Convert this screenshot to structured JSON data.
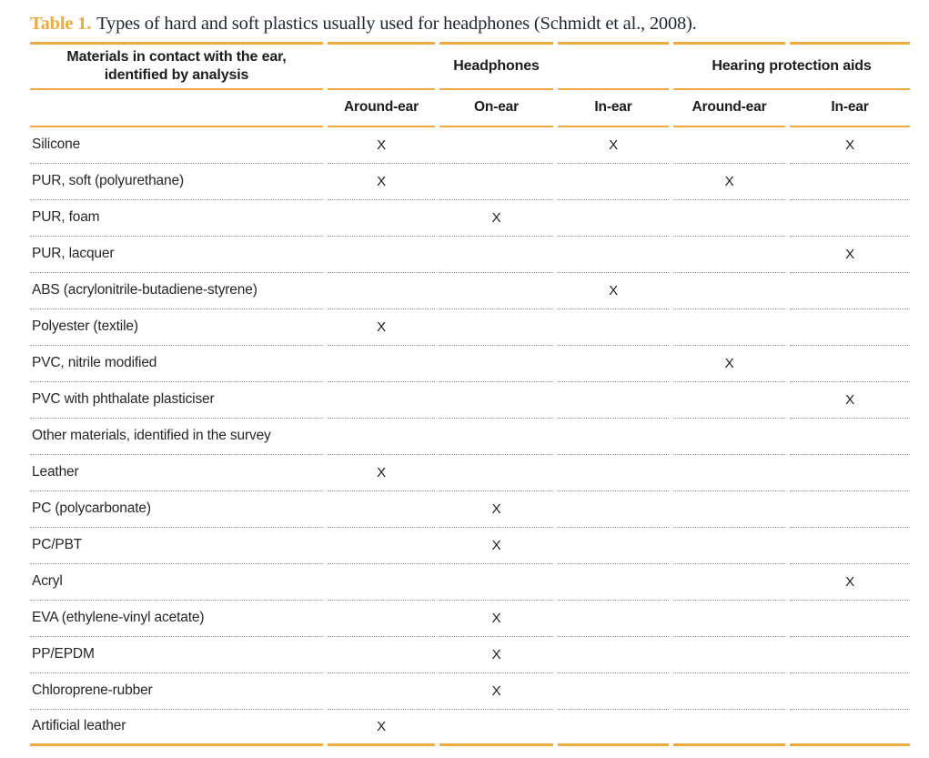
{
  "accent_color": "#F0A93C",
  "caption": {
    "label": "Table 1.",
    "text": "Types of hard and soft plastics usually used for headphones (Schmidt et al., 2008)."
  },
  "table": {
    "col1_header": "Materials in contact with the ear, identified by analysis",
    "group_headers": [
      "Headphones",
      "Hearing protection aids"
    ],
    "sub_headers": [
      "Around-ear",
      "On-ear",
      "In-ear",
      "Around-ear",
      "In-ear"
    ],
    "mark": "X",
    "rows": [
      {
        "material": "Silicone",
        "marks": [
          1,
          0,
          1,
          0,
          1
        ]
      },
      {
        "material": "PUR, soft (polyurethane)",
        "marks": [
          1,
          0,
          0,
          1,
          0
        ]
      },
      {
        "material": "PUR, foam",
        "marks": [
          0,
          1,
          0,
          0,
          0
        ]
      },
      {
        "material": "PUR, lacquer",
        "marks": [
          0,
          0,
          0,
          0,
          1
        ]
      },
      {
        "material": "ABS (acrylonitrile-butadiene-styrene)",
        "marks": [
          0,
          0,
          1,
          0,
          0
        ]
      },
      {
        "material": "Polyester (textile)",
        "marks": [
          1,
          0,
          0,
          0,
          0
        ]
      },
      {
        "material": "PVC, nitrile modified",
        "marks": [
          0,
          0,
          0,
          1,
          0
        ]
      },
      {
        "material": "PVC with phthalate plasticiser",
        "marks": [
          0,
          0,
          0,
          0,
          1
        ]
      },
      {
        "material": "Other materials, identified in the survey",
        "marks": [
          0,
          0,
          0,
          0,
          0
        ]
      },
      {
        "material": "Leather",
        "marks": [
          1,
          0,
          0,
          0,
          0
        ]
      },
      {
        "material": "PC (polycarbonate)",
        "marks": [
          0,
          1,
          0,
          0,
          0
        ]
      },
      {
        "material": "PC/PBT",
        "marks": [
          0,
          1,
          0,
          0,
          0
        ]
      },
      {
        "material": "Acryl",
        "marks": [
          0,
          0,
          0,
          0,
          1
        ]
      },
      {
        "material": "EVA (ethylene-vinyl acetate)",
        "marks": [
          0,
          1,
          0,
          0,
          0
        ]
      },
      {
        "material": "PP/EPDM",
        "marks": [
          0,
          1,
          0,
          0,
          0
        ]
      },
      {
        "material": "Chloroprene-rubber",
        "marks": [
          0,
          1,
          0,
          0,
          0
        ]
      },
      {
        "material": "Artificial leather",
        "marks": [
          1,
          0,
          0,
          0,
          0
        ]
      }
    ]
  }
}
